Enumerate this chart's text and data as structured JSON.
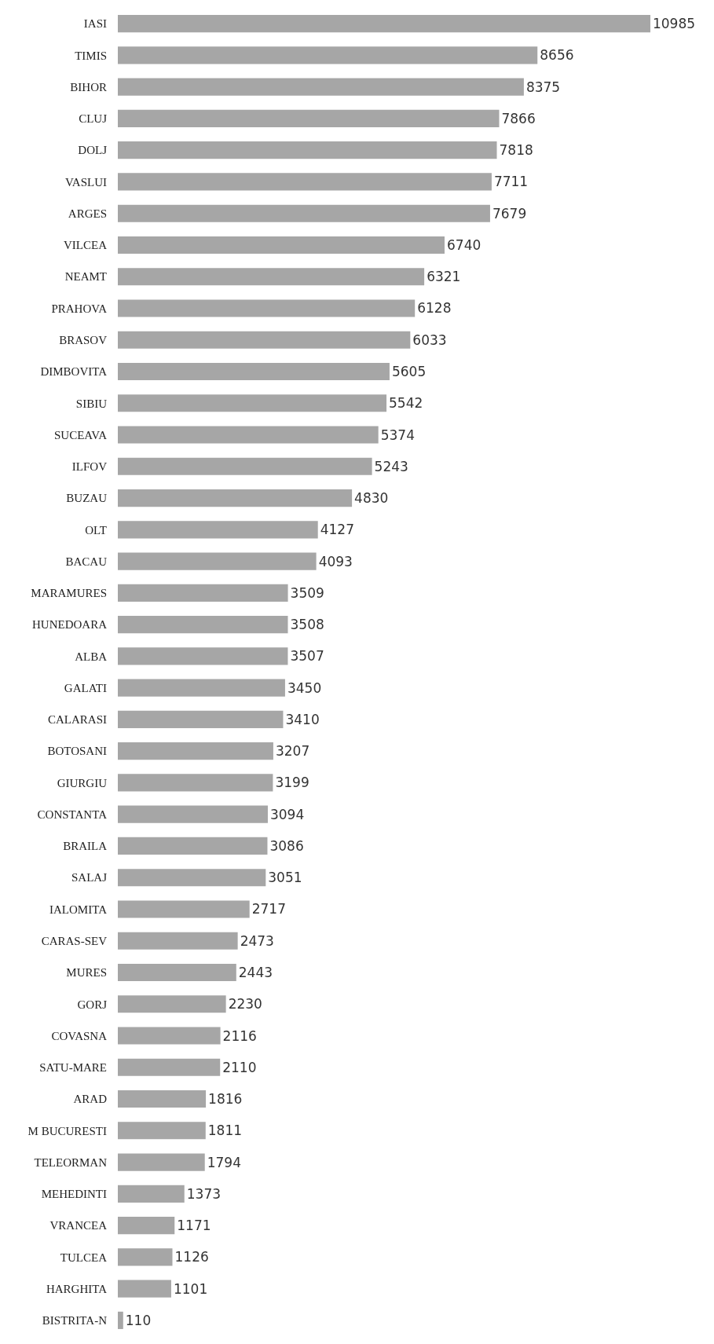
{
  "chart_data": {
    "type": "bar",
    "orientation": "horizontal",
    "data_labels": true,
    "color": "#a6a6a6",
    "categories": [
      "IASI",
      "TIMIS",
      "BIHOR",
      "CLUJ",
      "DOLJ",
      "VASLUI",
      "ARGES",
      "VILCEA",
      "NEAMT",
      "PRAHOVA",
      "BRASOV",
      "DIMBOVITA",
      "SIBIU",
      "SUCEAVA",
      "ILFOV",
      "BUZAU",
      "OLT",
      "BACAU",
      "MARAMURES",
      "HUNEDOARA",
      "ALBA",
      "GALATI",
      "CALARASI",
      "BOTOSANI",
      "GIURGIU",
      "CONSTANTA",
      "BRAILA",
      "SALAJ",
      "IALOMITA",
      "CARAS-SEV",
      "MURES",
      "GORJ",
      "COVASNA",
      "SATU-MARE",
      "ARAD",
      "M BUCURESTI",
      "TELEORMAN",
      "MEHEDINTI",
      "VRANCEA",
      "TULCEA",
      "HARGHITA",
      "BISTRITA-N"
    ],
    "values": [
      10985,
      8656,
      8375,
      7866,
      7818,
      7711,
      7679,
      6740,
      6321,
      6128,
      6033,
      5605,
      5542,
      5374,
      5243,
      4830,
      4127,
      4093,
      3509,
      3508,
      3507,
      3450,
      3410,
      3207,
      3199,
      3094,
      3086,
      3051,
      2717,
      2473,
      2443,
      2230,
      2116,
      2110,
      1816,
      1811,
      1794,
      1373,
      1171,
      1126,
      1101,
      110
    ]
  }
}
